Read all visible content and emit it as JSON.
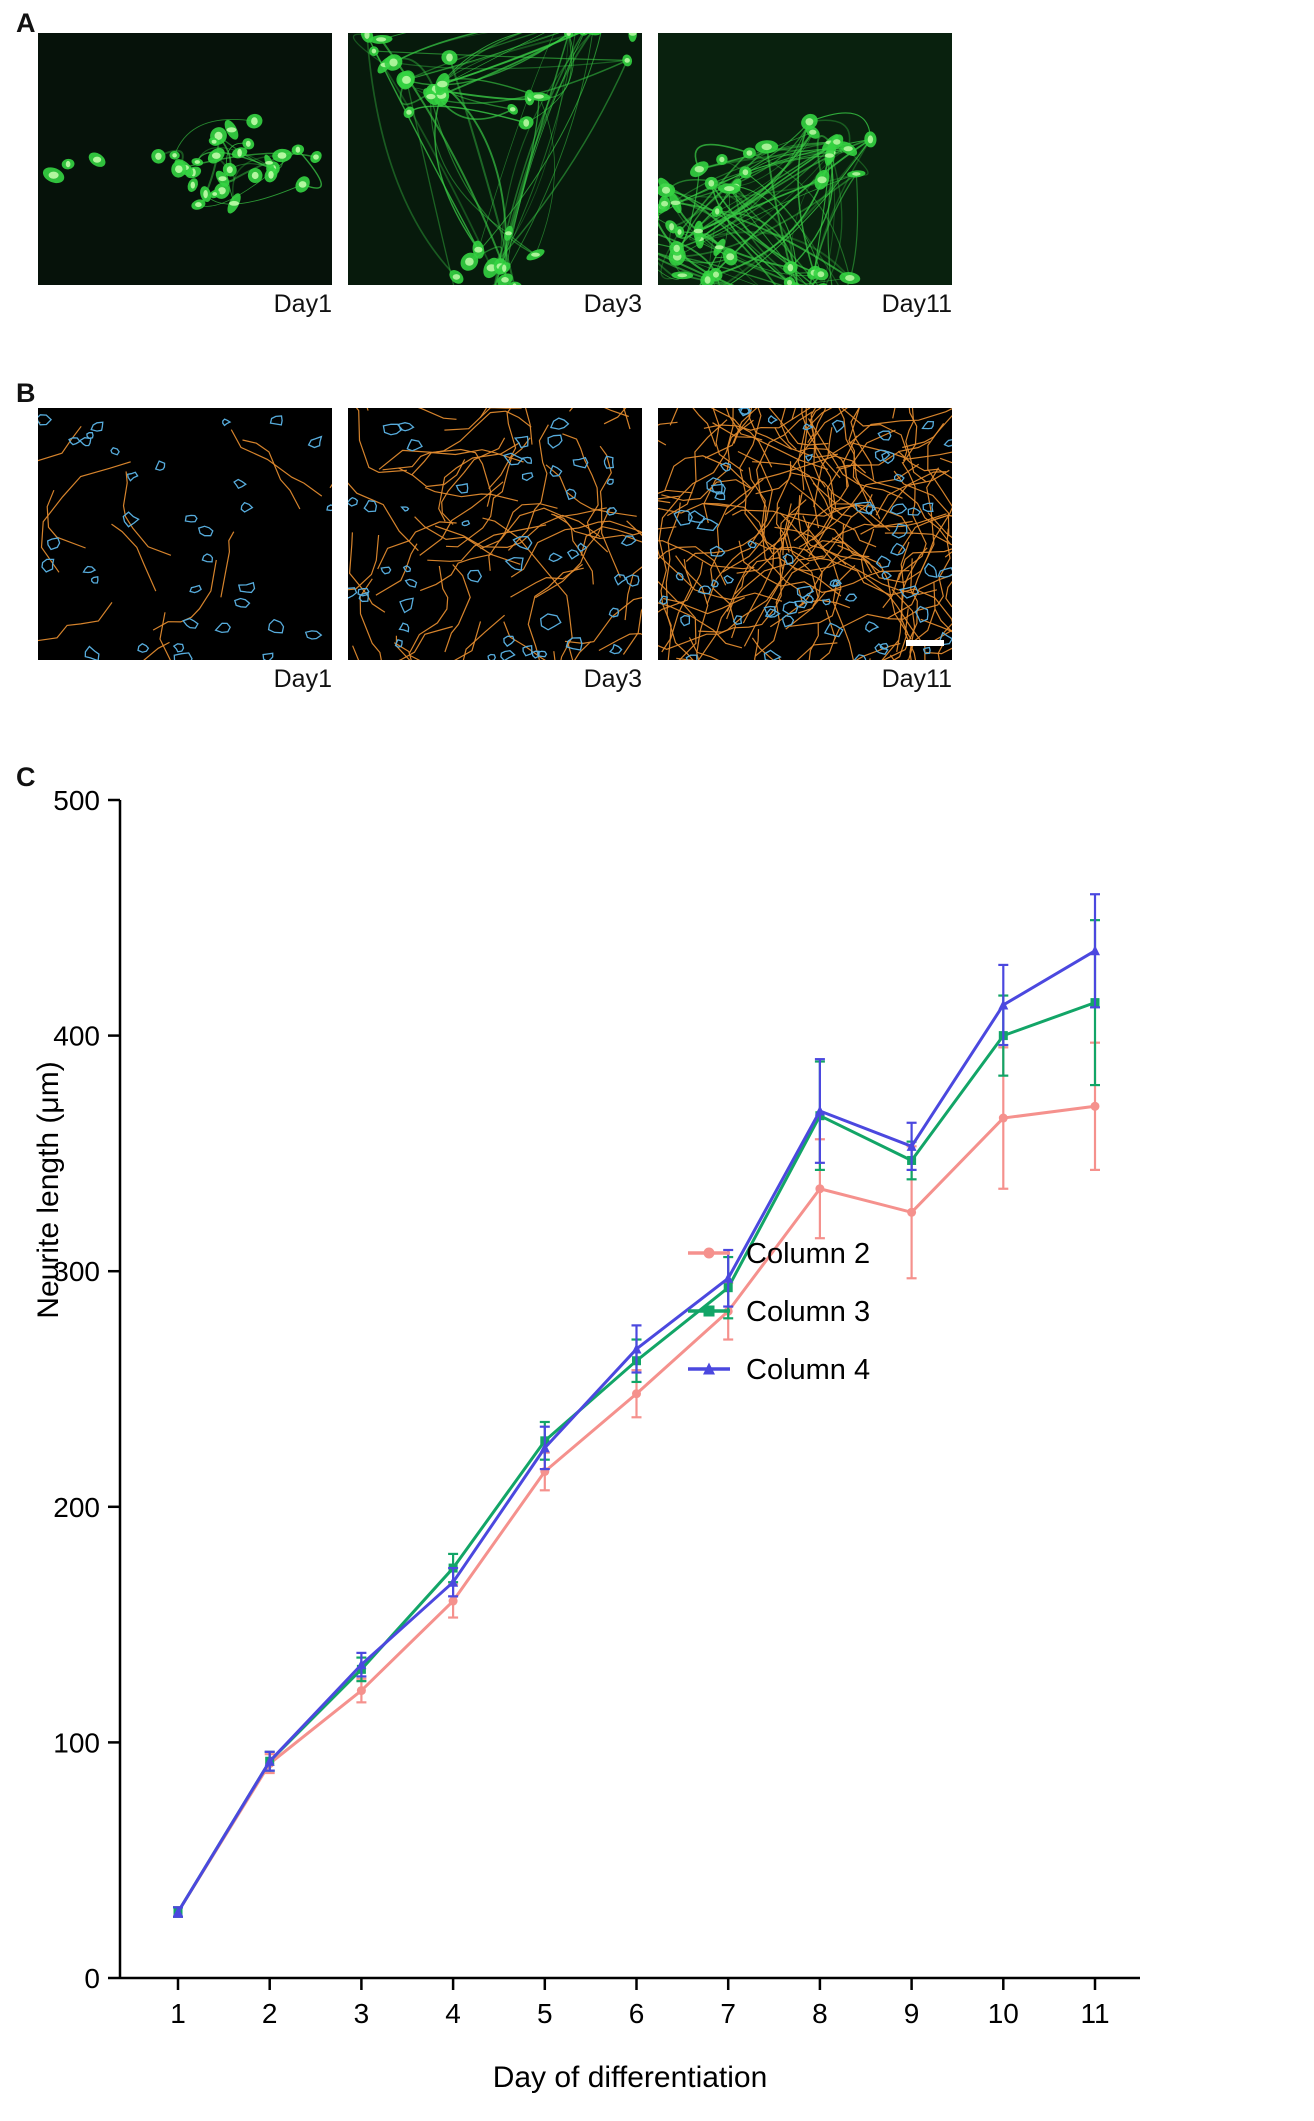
{
  "figure": {
    "panels": {
      "a": {
        "label": "A",
        "images": [
          {
            "caption": "Day1"
          },
          {
            "caption": "Day3"
          },
          {
            "caption": "Day11"
          }
        ]
      },
      "b": {
        "label": "B",
        "images": [
          {
            "caption": "Day1"
          },
          {
            "caption": "Day3"
          },
          {
            "caption": "Day11"
          }
        ]
      },
      "c": {
        "label": "C"
      }
    }
  },
  "chart_data": {
    "type": "line",
    "title": "",
    "xlabel": "Day of differentiation",
    "ylabel": "Neurite length (μm)",
    "x": [
      1,
      2,
      3,
      4,
      5,
      6,
      7,
      8,
      9,
      10,
      11
    ],
    "ylim": [
      0,
      500
    ],
    "yticks": [
      0,
      100,
      200,
      300,
      400,
      500
    ],
    "grid": false,
    "legend_position": "inside-right",
    "axis_color": "#000000",
    "series": [
      {
        "name": "Column 2",
        "color": "#F5918D",
        "marker": "circle",
        "values": [
          28,
          91,
          122,
          160,
          215,
          248,
          283,
          335,
          325,
          365,
          370
        ],
        "errors": [
          2,
          4,
          5,
          7,
          8,
          10,
          12,
          21,
          28,
          30,
          27
        ]
      },
      {
        "name": "Column 3",
        "color": "#12A567",
        "marker": "square",
        "values": [
          28,
          92,
          131,
          174,
          228,
          262,
          293,
          366,
          347,
          400,
          414
        ],
        "errors": [
          2,
          4,
          5,
          6,
          8,
          9,
          13,
          23,
          8,
          17,
          35
        ]
      },
      {
        "name": "Column 4",
        "color": "#4B48DF",
        "marker": "triangle",
        "values": [
          28,
          92,
          133,
          168,
          225,
          267,
          297,
          368,
          353,
          413,
          436
        ],
        "errors": [
          2,
          4,
          5,
          6,
          9,
          10,
          12,
          22,
          10,
          17,
          24
        ]
      }
    ]
  }
}
